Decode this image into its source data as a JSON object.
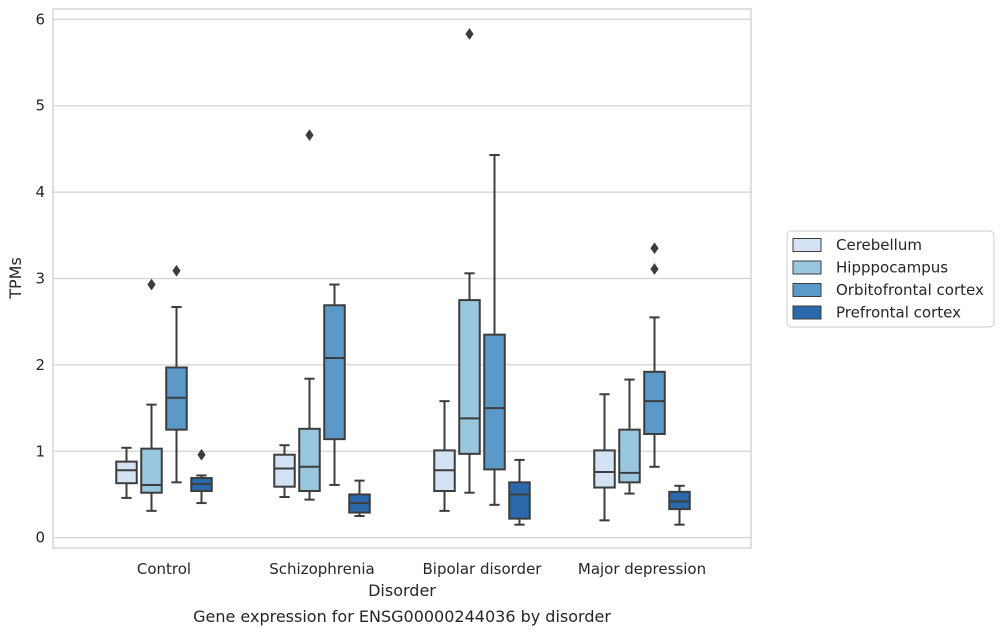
{
  "chart_data": {
    "type": "box",
    "caption": "Gene expression for ENSG00000244036 by disorder",
    "xlabel": "Disorder",
    "ylabel": "TPMs",
    "ylim": [
      -0.12,
      6.12
    ],
    "yticks": [
      0,
      1,
      2,
      3,
      4,
      5,
      6
    ],
    "grid": true,
    "legend_position": "right",
    "categories": [
      "Control",
      "Schizophrenia",
      "Bipolar disorder",
      "Major depression"
    ],
    "series": [
      {
        "name": "Cerebellum",
        "color": "#d3e3f3",
        "boxes": [
          {
            "q1": 0.63,
            "median": 0.78,
            "q3": 0.88,
            "whisker_low": 0.46,
            "whisker_high": 1.04,
            "outliers": []
          },
          {
            "q1": 0.59,
            "median": 0.8,
            "q3": 0.96,
            "whisker_low": 0.47,
            "whisker_high": 1.07,
            "outliers": []
          },
          {
            "q1": 0.54,
            "median": 0.78,
            "q3": 1.01,
            "whisker_low": 0.31,
            "whisker_high": 1.58,
            "outliers": []
          },
          {
            "q1": 0.58,
            "median": 0.76,
            "q3": 1.01,
            "whisker_low": 0.2,
            "whisker_high": 1.66,
            "outliers": []
          }
        ]
      },
      {
        "name": "Hipppocampus",
        "color": "#9ac7e0",
        "boxes": [
          {
            "q1": 0.52,
            "median": 0.61,
            "q3": 1.03,
            "whisker_low": 0.31,
            "whisker_high": 1.54,
            "outliers": [
              2.93
            ]
          },
          {
            "q1": 0.54,
            "median": 0.82,
            "q3": 1.26,
            "whisker_low": 0.44,
            "whisker_high": 1.84,
            "outliers": [
              4.66
            ]
          },
          {
            "q1": 0.97,
            "median": 1.38,
            "q3": 2.75,
            "whisker_low": 0.52,
            "whisker_high": 3.06,
            "outliers": [
              5.83
            ]
          },
          {
            "q1": 0.64,
            "median": 0.75,
            "q3": 1.25,
            "whisker_low": 0.51,
            "whisker_high": 1.83,
            "outliers": []
          }
        ]
      },
      {
        "name": "Orbitofrontal cortex",
        "color": "#5b9ac8",
        "boxes": [
          {
            "q1": 1.25,
            "median": 1.62,
            "q3": 1.97,
            "whisker_low": 0.64,
            "whisker_high": 2.67,
            "outliers": [
              3.09
            ]
          },
          {
            "q1": 1.14,
            "median": 2.08,
            "q3": 2.69,
            "whisker_low": 0.61,
            "whisker_high": 2.93,
            "outliers": []
          },
          {
            "q1": 0.79,
            "median": 1.5,
            "q3": 2.35,
            "whisker_low": 0.38,
            "whisker_high": 4.43,
            "outliers": []
          },
          {
            "q1": 1.2,
            "median": 1.58,
            "q3": 1.92,
            "whisker_low": 0.82,
            "whisker_high": 2.55,
            "outliers": [
              3.11,
              3.35
            ]
          }
        ]
      },
      {
        "name": "Prefrontal cortex",
        "color": "#2a6aac",
        "boxes": [
          {
            "q1": 0.54,
            "median": 0.62,
            "q3": 0.69,
            "whisker_low": 0.4,
            "whisker_high": 0.72,
            "outliers": [
              0.96
            ]
          },
          {
            "q1": 0.29,
            "median": 0.4,
            "q3": 0.5,
            "whisker_low": 0.25,
            "whisker_high": 0.66,
            "outliers": []
          },
          {
            "q1": 0.22,
            "median": 0.5,
            "q3": 0.64,
            "whisker_low": 0.15,
            "whisker_high": 0.9,
            "outliers": []
          },
          {
            "q1": 0.33,
            "median": 0.42,
            "q3": 0.53,
            "whisker_low": 0.15,
            "whisker_high": 0.6,
            "outliers": []
          }
        ]
      }
    ]
  }
}
